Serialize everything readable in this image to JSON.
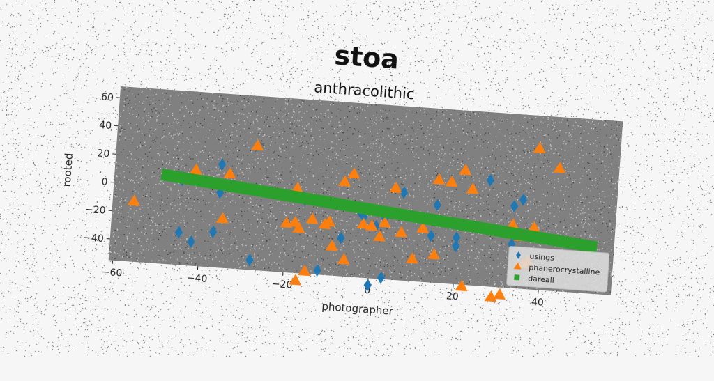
{
  "title": "stoa",
  "subtitle": "anthracolithic",
  "chart_data": {
    "type": "scatter",
    "xlabel": "photographer",
    "ylabel": "rooted",
    "xlim": [
      -61,
      57
    ],
    "ylim": [
      -55,
      68
    ],
    "x_ticks": [
      -60,
      -40,
      -20,
      0,
      20,
      40
    ],
    "y_ticks": [
      -40,
      -20,
      0,
      20,
      40,
      60
    ],
    "grid": false,
    "legend_position": "lower-right",
    "background": "#808080",
    "series": [
      {
        "name": "usings",
        "marker": "diamond",
        "color": "#1f77b4",
        "points": [
          [
            -45,
            -32
          ],
          [
            -42,
            -38
          ],
          [
            -45,
            5
          ],
          [
            -36,
            18
          ],
          [
            -36,
            -2
          ],
          [
            -37,
            -30
          ],
          [
            -28,
            -48
          ],
          [
            -12,
            -52
          ],
          [
            -7,
            -28
          ],
          [
            -16,
            -3
          ],
          [
            -3,
            -8
          ],
          [
            -2,
            -12
          ],
          [
            1,
            -18
          ],
          [
            3,
            -12
          ],
          [
            0,
            -60
          ],
          [
            3,
            -54
          ],
          [
            7,
            7
          ],
          [
            14,
            -22
          ],
          [
            15,
            0
          ],
          [
            20,
            -22
          ],
          [
            20,
            -28
          ],
          [
            27,
            20
          ],
          [
            33,
            3
          ],
          [
            35,
            8
          ],
          [
            33,
            -24
          ]
        ]
      },
      {
        "name": "phanerocrystalline",
        "marker": "triangle",
        "color": "#ff7f0e",
        "points": [
          [
            -56,
            -12
          ],
          [
            -42,
            13
          ],
          [
            -34,
            12
          ],
          [
            -35,
            -20
          ],
          [
            -28,
            33
          ],
          [
            -20,
            -20
          ],
          [
            -18,
            -19
          ],
          [
            -17,
            -23
          ],
          [
            -14,
            -16
          ],
          [
            -18,
            5
          ],
          [
            -10,
            -17
          ],
          [
            -11,
            -19
          ],
          [
            -7,
            12
          ],
          [
            -5,
            18
          ],
          [
            -9,
            -34
          ],
          [
            -6,
            -43
          ],
          [
            -2,
            -17
          ],
          [
            0,
            -18
          ],
          [
            2,
            -25
          ],
          [
            3,
            -15
          ],
          [
            5,
            10
          ],
          [
            7,
            -21
          ],
          [
            10,
            -39
          ],
          [
            12,
            -17
          ],
          [
            15,
            -35
          ],
          [
            15,
            18
          ],
          [
            18,
            17
          ],
          [
            21,
            26
          ],
          [
            23,
            13
          ],
          [
            -15,
            -53
          ],
          [
            -17,
            -60
          ],
          [
            22,
            -56
          ],
          [
            29,
            -62
          ],
          [
            31,
            -60
          ],
          [
            33,
            -10
          ],
          [
            35,
            -18
          ],
          [
            36,
            -37
          ],
          [
            37,
            -35
          ],
          [
            38,
            -11
          ],
          [
            38,
            45
          ],
          [
            43,
            32
          ]
        ]
      },
      {
        "name": "dareall",
        "marker": "square",
        "color": "#2ca02c",
        "line": {
          "x": [
            -50,
            53
          ],
          "y": [
            8,
            -22
          ]
        }
      }
    ]
  }
}
